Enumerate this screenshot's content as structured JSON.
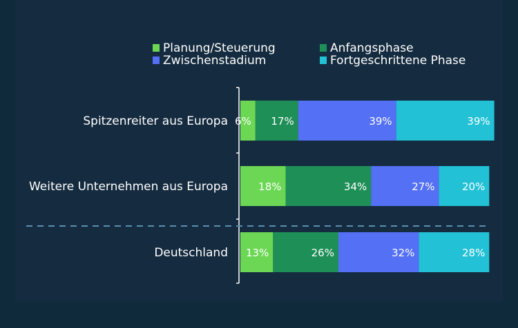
{
  "chart_data": {
    "type": "bar",
    "orientation": "horizontal",
    "stacked": true,
    "title": "",
    "xlabel": "",
    "ylabel": "",
    "xlim": [
      0,
      100
    ],
    "legend_position": "top",
    "categories": [
      "Spitzenreiter aus Europa",
      "Weitere Unternehmen aus Europa",
      "Deutschland"
    ],
    "series": [
      {
        "name": "Planung/Steuerung",
        "color": "#6cd755",
        "values": [
          6,
          18,
          13
        ]
      },
      {
        "name": "Anfangsphase",
        "color": "#1f8f58",
        "values": [
          17,
          34,
          26
        ]
      },
      {
        "name": "Zwischenstadium",
        "color": "#5470f5",
        "values": [
          39,
          27,
          32
        ]
      },
      {
        "name": "Fortgeschrittene Phase",
        "color": "#22c1d6",
        "values": [
          39,
          20,
          28
        ]
      }
    ],
    "value_suffix": "%",
    "separator_after_category": 1
  }
}
